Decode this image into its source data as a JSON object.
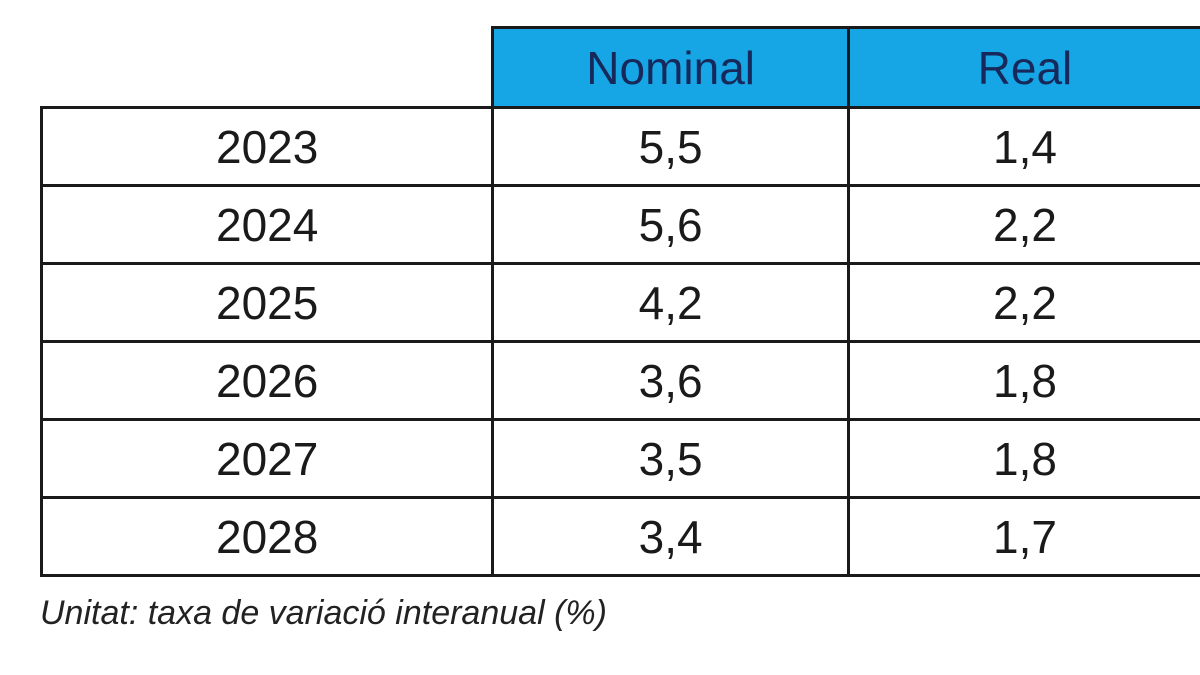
{
  "chart_data": {
    "type": "table",
    "columns": [
      "",
      "Nominal",
      "Real"
    ],
    "rows": [
      {
        "year": "2023",
        "nominal": "5,5",
        "real": "1,4"
      },
      {
        "year": "2024",
        "nominal": "5,6",
        "real": "2,2"
      },
      {
        "year": "2025",
        "nominal": "4,2",
        "real": "2,2"
      },
      {
        "year": "2026",
        "nominal": "3,6",
        "real": "1,8"
      },
      {
        "year": "2027",
        "nominal": "3,5",
        "real": "1,8"
      },
      {
        "year": "2028",
        "nominal": "3,4",
        "real": "1,7"
      }
    ],
    "note": "Unitat: taxa de variació interanual (%)"
  },
  "colors": {
    "header_bg": "#16a6e6",
    "header_text": "#16295a",
    "border": "#1a1a1a"
  }
}
